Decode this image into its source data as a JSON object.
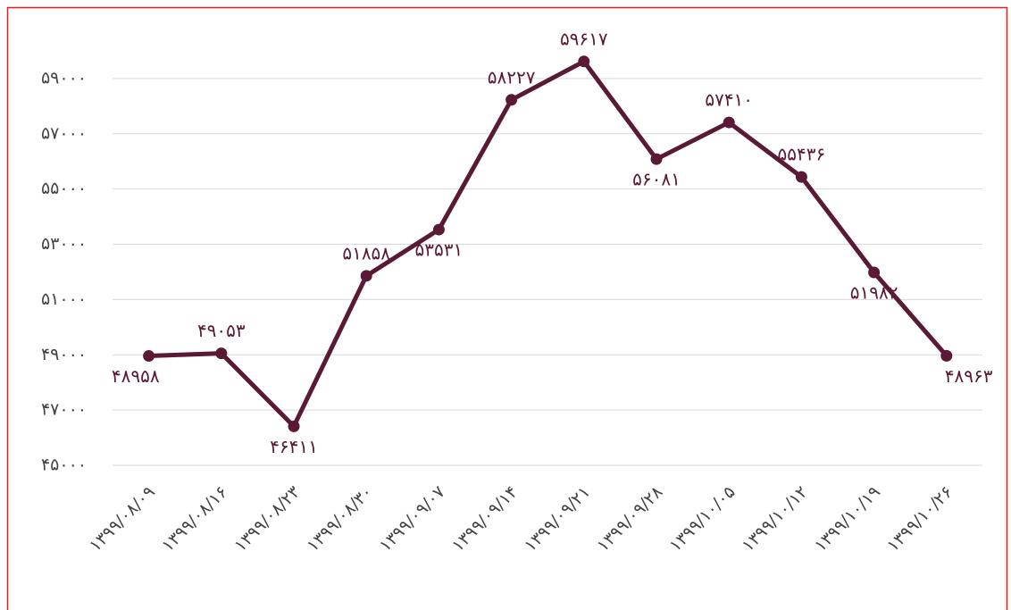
{
  "chart_data": {
    "type": "line",
    "categories": [
      "۱۳۹۹/۰۸/۰۹",
      "۱۳۹۹/۰۸/۱۶",
      "۱۳۹۹/۰۸/۲۳",
      "۱۳۹۹/۰۸/۳۰",
      "۱۳۹۹/۰۹/۰۷",
      "۱۳۹۹/۰۹/۱۴",
      "۱۳۹۹/۰۹/۲۱",
      "۱۳۹۹/۰۹/۲۸",
      "۱۳۹۹/۱۰/۰۵",
      "۱۳۹۹/۱۰/۱۲",
      "۱۳۹۹/۱۰/۱۹",
      "۱۳۹۹/۱۰/۲۶"
    ],
    "series": [
      {
        "color": "#5a1a36",
        "values": [
          48958,
          49053,
          46411,
          51858,
          53531,
          58227,
          59617,
          56081,
          57410,
          55436,
          51982,
          48963
        ],
        "value_labels": [
          "۴۸۹۵۸",
          "۴۹۰۵۳",
          "۴۶۴۱۱",
          "۵۱۸۵۸",
          "۵۳۵۳۱",
          "۵۸۲۲۷",
          "۵۹۶۱۷",
          "۵۶۰۸۱",
          "۵۷۴۱۰",
          "۵۵۴۳۶",
          "۵۱۹۸۲",
          "۴۸۹۶۳"
        ]
      }
    ],
    "ylim": [
      45000,
      61000
    ],
    "yticks": [
      {
        "value": 45000,
        "label": "۴۵۰۰۰"
      },
      {
        "value": 47000,
        "label": "۴۷۰۰۰"
      },
      {
        "value": 49000,
        "label": "۴۹۰۰۰"
      },
      {
        "value": 51000,
        "label": "۵۱۰۰۰"
      },
      {
        "value": 53000,
        "label": "۵۳۰۰۰"
      },
      {
        "value": 55000,
        "label": "۵۵۰۰۰"
      },
      {
        "value": 57000,
        "label": "۵۷۰۰۰"
      },
      {
        "value": 59000,
        "label": "۵۹۰۰۰"
      }
    ],
    "grid": true
  }
}
